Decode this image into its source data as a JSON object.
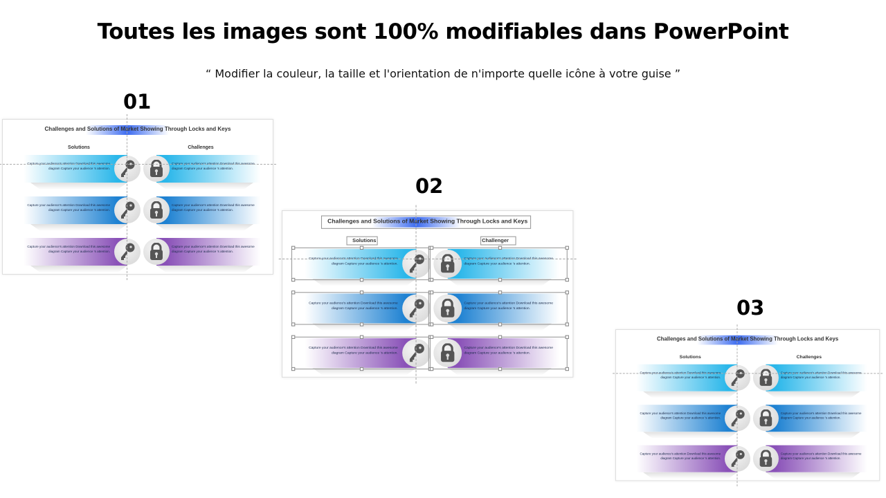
{
  "heading": "Toutes les images sont 100% modifiables dans PowerPoint",
  "subheading": "“ Modifier la couleur, la taille et l'orientation de n'importe quelle icône à votre guise ”",
  "row_colors": [
    "#2bb7ea",
    "#1f82d2",
    "#8a52b8"
  ],
  "icons": {
    "left": "key-icon",
    "right": "lock-icon"
  },
  "panels": [
    {
      "number": "01",
      "title": "Challenges and Solutions of Market Showing Through Locks and Keys",
      "solutions_label": "Solutions",
      "challenges_label": "Challenges",
      "selected": false,
      "rows": [
        {
          "left": "Capture your audience's attention Download this awesome diagram Capture your  audience 's attention.",
          "right": "Capture your audience's attention Download this awesome diagram Capture your  audience 's attention."
        },
        {
          "left": "Capture your audience's attention Download this awesome diagram Capture your  audience 's attention.",
          "right": "Capture your audience's attention Download this awesome diagram Capture your  audience 's attention."
        },
        {
          "left": "Capture your audience's attention Download this awesome diagram Capture your  audience 's attention.",
          "right": "Capture your audience's attention Download this awesome diagram Capture your  audience 's attention."
        }
      ]
    },
    {
      "number": "02",
      "title": "Challenges and Solutions of Market Showing Through Locks and Keys",
      "solutions_label": "Solutions",
      "challenges_label": "Challenger",
      "selected": true,
      "rows": [
        {
          "left": "Capture your audience's attention Download this awesome diagram Capture your  audience 's attention.",
          "right": "Capture your audience's attention Download this awesome diagram Capture your  audience 's attention."
        },
        {
          "left": "Capture your audience's attention Download this awesome diagram Capture your  audience 's attention.",
          "right": "Capture your audience's attention Download this awesome diagram Capture your  audience 's attention."
        },
        {
          "left": "Capture your audience's attention Download this awesome diagram Capture your  audience 's attention.",
          "right": "Capture your audience's attention Download this awesome diagram Capture your  audience 's attention."
        }
      ]
    },
    {
      "number": "03",
      "title": "Challenges and Solutions of Market Showing Through Locks and Keys",
      "solutions_label": "Solutions",
      "challenges_label": "Challenges",
      "selected": false,
      "rows": [
        {
          "left": "Capture your audience's attention Download this awesome diagram Capture your  audience 's attention.",
          "right": "Capture your audience's attention Download this awesome diagram Capture your  audience 's attention."
        },
        {
          "left": "Capture your audience's attention Download this awesome diagram Capture your  audience 's attention.",
          "right": "Capture your audience's attention Download this awesome diagram Capture your  audience 's attention."
        },
        {
          "left": "Capture your audience's attention Download this awesome diagram Capture your  audience 's attention.",
          "right": "Capture your audience's attention Download this awesome diagram Capture your  audience 's attention."
        }
      ]
    }
  ]
}
